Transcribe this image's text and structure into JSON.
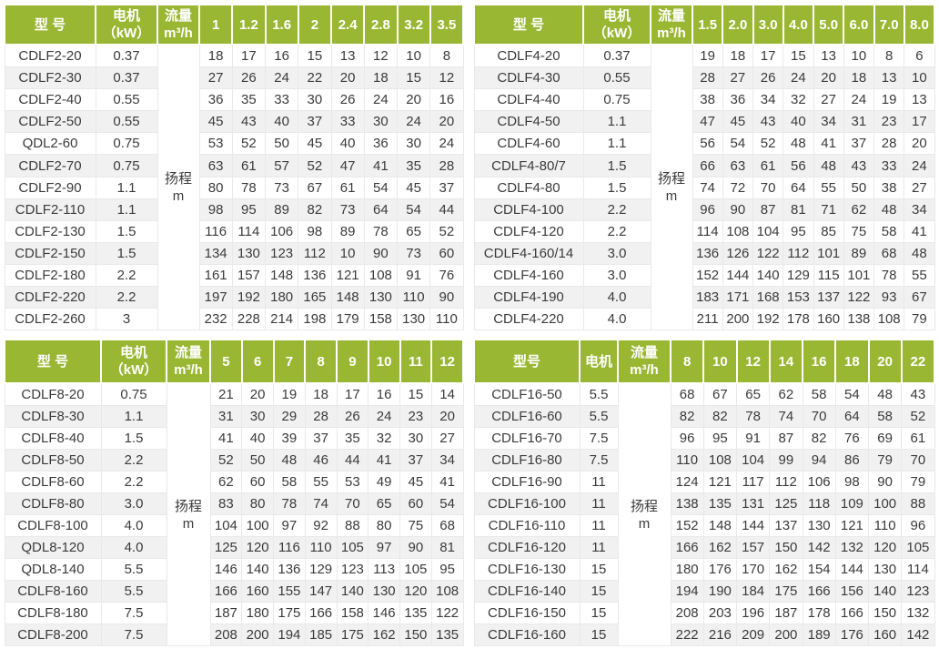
{
  "colors": {
    "header_bg": "#9ab733",
    "header_text": "#ffffff",
    "row_bg": "#ffffff",
    "row_alt_bg": "#f1f1f1",
    "border": "#e9e9e9",
    "text": "#3b3b3b"
  },
  "tables": [
    {
      "series": "CDLF2",
      "headers": {
        "model": "型 号",
        "motor_lines": [
          "电机",
          "（kW）"
        ],
        "flow_lines": [
          "流量",
          "m³/h"
        ],
        "head_lines": [
          "扬程",
          "m"
        ]
      },
      "flow_columns": [
        "1",
        "1.2",
        "1.6",
        "2",
        "2.4",
        "2.8",
        "3.2",
        "3.5"
      ],
      "rows": [
        {
          "model": "CDLF2-20",
          "kw": "0.37",
          "values": [
            18,
            17,
            16,
            15,
            13,
            12,
            10,
            8
          ]
        },
        {
          "model": "CDLF2-30",
          "kw": "0.37",
          "values": [
            27,
            26,
            24,
            22,
            20,
            18,
            15,
            12
          ]
        },
        {
          "model": "CDLF2-40",
          "kw": "0.55",
          "values": [
            36,
            35,
            33,
            30,
            26,
            24,
            20,
            16
          ]
        },
        {
          "model": "CDLF2-50",
          "kw": "0.55",
          "values": [
            45,
            43,
            40,
            37,
            33,
            30,
            24,
            20
          ]
        },
        {
          "model": "QDL2-60",
          "kw": "0.75",
          "values": [
            53,
            52,
            50,
            45,
            40,
            36,
            30,
            24
          ]
        },
        {
          "model": "CDLF2-70",
          "kw": "0.75",
          "values": [
            63,
            61,
            57,
            52,
            47,
            41,
            35,
            28
          ]
        },
        {
          "model": "CDLF2-90",
          "kw": "1.1",
          "values": [
            80,
            78,
            73,
            67,
            61,
            54,
            45,
            37
          ]
        },
        {
          "model": "CDLF2-110",
          "kw": "1.1",
          "values": [
            98,
            95,
            89,
            82,
            73,
            64,
            54,
            44
          ]
        },
        {
          "model": "CDLF2-130",
          "kw": "1.5",
          "values": [
            116,
            114,
            106,
            98,
            89,
            78,
            65,
            52
          ]
        },
        {
          "model": "CDLF2-150",
          "kw": "1.5",
          "values": [
            134,
            130,
            123,
            112,
            10,
            90,
            73,
            60
          ]
        },
        {
          "model": "CDLF2-180",
          "kw": "2.2",
          "values": [
            161,
            157,
            148,
            136,
            121,
            108,
            91,
            76
          ]
        },
        {
          "model": "CDLF2-220",
          "kw": "2.2",
          "values": [
            197,
            192,
            180,
            165,
            148,
            130,
            110,
            90
          ]
        },
        {
          "model": "CDLF2-260",
          "kw": "3",
          "values": [
            232,
            228,
            214,
            198,
            179,
            158,
            130,
            110
          ]
        }
      ]
    },
    {
      "series": "CDLF4",
      "headers": {
        "model": "型 号",
        "motor_lines": [
          "电机",
          "（kW）"
        ],
        "flow_lines": [
          "流量",
          "m³/h"
        ],
        "head_lines": [
          "扬程",
          "m"
        ]
      },
      "flow_columns": [
        "1.5",
        "2.0",
        "3.0",
        "4.0",
        "5.0",
        "6.0",
        "7.0",
        "8.0"
      ],
      "rows": [
        {
          "model": "CDLF4-20",
          "kw": "0.37",
          "values": [
            19,
            18,
            17,
            15,
            13,
            10,
            8,
            6
          ]
        },
        {
          "model": "CDLF4-30",
          "kw": "0.55",
          "values": [
            28,
            27,
            26,
            24,
            20,
            18,
            13,
            10
          ]
        },
        {
          "model": "CDLF4-40",
          "kw": "0.75",
          "values": [
            38,
            36,
            34,
            32,
            27,
            24,
            19,
            13
          ]
        },
        {
          "model": "CDLF4-50",
          "kw": "1.1",
          "values": [
            47,
            45,
            43,
            40,
            34,
            31,
            23,
            17
          ]
        },
        {
          "model": "CDLF4-60",
          "kw": "1.1",
          "values": [
            56,
            54,
            52,
            48,
            41,
            37,
            28,
            20
          ]
        },
        {
          "model": "CDLF4-80/7",
          "kw": "1.5",
          "values": [
            66,
            63,
            61,
            56,
            48,
            43,
            33,
            24
          ]
        },
        {
          "model": "CDLF4-80",
          "kw": "1.5",
          "values": [
            74,
            72,
            70,
            64,
            55,
            50,
            38,
            27
          ]
        },
        {
          "model": "CDLF4-100",
          "kw": "2.2",
          "values": [
            96,
            90,
            87,
            81,
            71,
            62,
            48,
            34
          ]
        },
        {
          "model": "CDLF4-120",
          "kw": "2.2",
          "values": [
            114,
            108,
            104,
            95,
            85,
            75,
            58,
            41
          ]
        },
        {
          "model": "CDLF4-160/14",
          "kw": "3.0",
          "values": [
            136,
            126,
            122,
            112,
            101,
            89,
            68,
            48
          ]
        },
        {
          "model": "CDLF4-160",
          "kw": "3.0",
          "values": [
            152,
            144,
            140,
            129,
            115,
            101,
            78,
            55
          ]
        },
        {
          "model": "CDLF4-190",
          "kw": "4.0",
          "values": [
            183,
            171,
            168,
            153,
            137,
            122,
            93,
            67
          ]
        },
        {
          "model": "CDLF4-220",
          "kw": "4.0",
          "values": [
            211,
            200,
            192,
            178,
            160,
            138,
            108,
            79
          ]
        }
      ]
    },
    {
      "series": "CDLF8",
      "headers": {
        "model": "型 号",
        "motor_lines": [
          "电机",
          "（kW）"
        ],
        "flow_lines": [
          "流量",
          "m³/h"
        ],
        "head_lines": [
          "扬程",
          "m"
        ]
      },
      "flow_columns": [
        "5",
        "6",
        "7",
        "8",
        "9",
        "10",
        "11",
        "12"
      ],
      "rows": [
        {
          "model": "CDLF8-20",
          "kw": "0.75",
          "values": [
            21,
            20,
            19,
            18,
            17,
            16,
            15,
            14
          ]
        },
        {
          "model": "CDLF8-30",
          "kw": "1.1",
          "values": [
            31,
            30,
            29,
            28,
            26,
            24,
            23,
            20
          ]
        },
        {
          "model": "CDLF8-40",
          "kw": "1.5",
          "values": [
            41,
            40,
            39,
            37,
            35,
            32,
            30,
            27
          ]
        },
        {
          "model": "CDLF8-50",
          "kw": "2.2",
          "values": [
            52,
            50,
            48,
            46,
            44,
            41,
            37,
            34
          ]
        },
        {
          "model": "CDLF8-60",
          "kw": "2.2",
          "values": [
            62,
            60,
            58,
            55,
            53,
            49,
            45,
            41
          ]
        },
        {
          "model": "CDLF8-80",
          "kw": "3.0",
          "values": [
            83,
            80,
            78,
            74,
            70,
            65,
            60,
            54
          ]
        },
        {
          "model": "CDLF8-100",
          "kw": "4.0",
          "values": [
            104,
            100,
            97,
            92,
            88,
            80,
            75,
            68
          ]
        },
        {
          "model": "QDL8-120",
          "kw": "4.0",
          "values": [
            125,
            120,
            116,
            110,
            105,
            97,
            90,
            81
          ]
        },
        {
          "model": "QDL8-140",
          "kw": "5.5",
          "values": [
            146,
            140,
            136,
            129,
            123,
            113,
            105,
            95
          ]
        },
        {
          "model": "CDLF8-160",
          "kw": "5.5",
          "values": [
            166,
            160,
            155,
            147,
            140,
            130,
            120,
            108
          ]
        },
        {
          "model": "CDLF8-180",
          "kw": "7.5",
          "values": [
            187,
            180,
            175,
            166,
            158,
            146,
            135,
            122
          ]
        },
        {
          "model": "CDLF8-200",
          "kw": "7.5",
          "values": [
            208,
            200,
            194,
            185,
            175,
            162,
            150,
            135
          ]
        }
      ]
    },
    {
      "series": "CDLF16",
      "headers": {
        "model": "型号",
        "motor_lines": [
          "电机"
        ],
        "flow_lines": [
          "流量",
          "m³/h"
        ],
        "head_lines": [
          "扬程",
          "m"
        ]
      },
      "flow_columns": [
        "8",
        "10",
        "12",
        "14",
        "16",
        "18",
        "20",
        "22"
      ],
      "rows": [
        {
          "model": "CDLF16-50",
          "kw": "5.5",
          "values": [
            68,
            67,
            65,
            62,
            58,
            54,
            48,
            43
          ]
        },
        {
          "model": "CDLF16-60",
          "kw": "5.5",
          "values": [
            82,
            82,
            78,
            74,
            70,
            64,
            58,
            52
          ]
        },
        {
          "model": "CDLF16-70",
          "kw": "7.5",
          "values": [
            96,
            95,
            91,
            87,
            82,
            76,
            69,
            61
          ]
        },
        {
          "model": "CDLF16-80",
          "kw": "7.5",
          "values": [
            110,
            108,
            104,
            99,
            94,
            86,
            79,
            70
          ]
        },
        {
          "model": "CDLF16-90",
          "kw": "11",
          "values": [
            124,
            121,
            117,
            112,
            106,
            98,
            90,
            79
          ]
        },
        {
          "model": "CDLF16-100",
          "kw": "11",
          "values": [
            138,
            135,
            131,
            125,
            118,
            109,
            100,
            88
          ]
        },
        {
          "model": "CDLF16-110",
          "kw": "11",
          "values": [
            152,
            148,
            144,
            137,
            130,
            121,
            110,
            96
          ]
        },
        {
          "model": "CDLF16-120",
          "kw": "11",
          "values": [
            166,
            162,
            157,
            150,
            142,
            132,
            120,
            105
          ]
        },
        {
          "model": "CDLF16-130",
          "kw": "15",
          "values": [
            180,
            176,
            170,
            162,
            154,
            144,
            130,
            114
          ]
        },
        {
          "model": "CDLF16-140",
          "kw": "15",
          "values": [
            194,
            190,
            184,
            175,
            166,
            156,
            140,
            123
          ]
        },
        {
          "model": "CDLF16-150",
          "kw": "15",
          "values": [
            208,
            203,
            196,
            187,
            178,
            166,
            150,
            132
          ]
        },
        {
          "model": "CDLF16-160",
          "kw": "15",
          "values": [
            222,
            216,
            209,
            200,
            189,
            176,
            160,
            142
          ]
        }
      ]
    }
  ]
}
